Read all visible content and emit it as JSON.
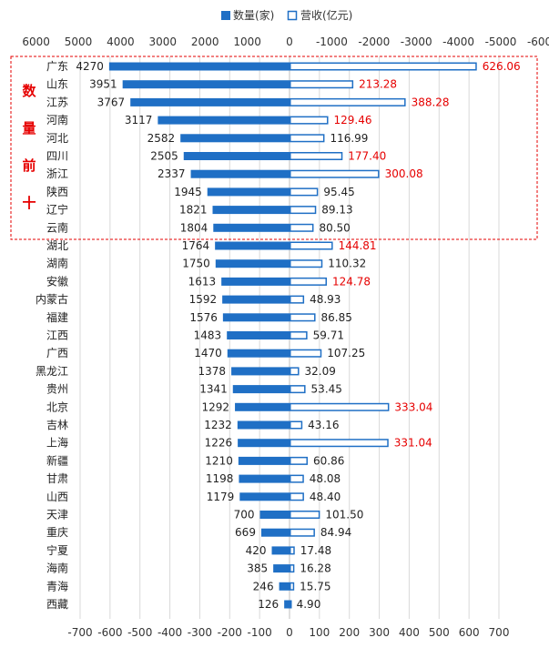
{
  "chart_data": {
    "type": "bar",
    "orientation": "horizontal-butterfly",
    "categories": [
      "广东",
      "山东",
      "江苏",
      "河南",
      "河北",
      "四川",
      "浙江",
      "陕西",
      "辽宁",
      "云南",
      "湖北",
      "湖南",
      "安徽",
      "内蒙古",
      "福建",
      "江西",
      "广西",
      "黑龙江",
      "贵州",
      "北京",
      "吉林",
      "上海",
      "新疆",
      "甘肃",
      "山西",
      "天津",
      "重庆",
      "宁夏",
      "海南",
      "青海",
      "西藏"
    ],
    "series": [
      {
        "name": "数量(家)",
        "values": [
          4270,
          3951,
          3767,
          3117,
          2582,
          2505,
          2337,
          1945,
          1821,
          1804,
          1764,
          1750,
          1613,
          1592,
          1576,
          1483,
          1470,
          1378,
          1341,
          1292,
          1232,
          1226,
          1210,
          1198,
          1179,
          700,
          669,
          420,
          385,
          246,
          126
        ],
        "color": "#1f6fc5"
      },
      {
        "name": "营收(亿元)",
        "values": [
          626.06,
          213.28,
          388.28,
          129.46,
          116.99,
          177.4,
          300.08,
          95.45,
          89.13,
          80.5,
          144.81,
          110.32,
          124.78,
          48.93,
          86.85,
          59.71,
          107.25,
          32.09,
          53.45,
          333.04,
          43.16,
          331.04,
          60.86,
          48.08,
          48.4,
          101.5,
          84.94,
          17.48,
          16.28,
          15.75,
          4.9
        ],
        "color": "#1f6fc5"
      }
    ],
    "value_labels": [
      "4270",
      "3951",
      "3767",
      "3117",
      "2582",
      "2505",
      "2337",
      "1945",
      "1821",
      "1804",
      "1764",
      "1750",
      "1613",
      "1592",
      "1576",
      "1483",
      "1470",
      "1378",
      "1341",
      "1292",
      "1232",
      "1226",
      "1210",
      "1198",
      "1179",
      "700",
      "669",
      "420",
      "385",
      "246",
      "126"
    ],
    "revenue_labels": [
      "626.06",
      "213.28",
      "388.28",
      "129.46",
      "116.99",
      "177.40",
      "300.08",
      "95.45",
      "89.13",
      "80.50",
      "144.81",
      "110.32",
      "124.78",
      "48.93",
      "86.85",
      "59.71",
      "107.25",
      "32.09",
      "53.45",
      "333.04",
      "43.16",
      "331.04",
      "60.86",
      "48.08",
      "48.40",
      "101.50",
      "84.94",
      "17.48",
      "16.28",
      "15.75",
      "4.90"
    ],
    "highlight_revenue": [
      true,
      true,
      true,
      true,
      false,
      true,
      true,
      false,
      false,
      false,
      true,
      false,
      true,
      false,
      false,
      false,
      false,
      false,
      false,
      true,
      false,
      true,
      false,
      false,
      false,
      false,
      false,
      false,
      false,
      false,
      false
    ],
    "highlight_color": "#e60000",
    "top_axis_ticks": [
      "6000",
      "5000",
      "4000",
      "3000",
      "2000",
      "1000",
      "0",
      "-1000",
      "-2000",
      "-3000",
      "-4000",
      "-5000",
      "-6000"
    ],
    "bottom_axis_ticks": [
      "-700",
      "-600",
      "-500",
      "-400",
      "-300",
      "-200",
      "-100",
      "0",
      "100",
      "200",
      "300",
      "400",
      "500",
      "600",
      "700"
    ],
    "count_axis_range": [
      -6000,
      6000
    ],
    "revenue_axis_range": [
      -700,
      700
    ],
    "grid": true,
    "legend_position": "top",
    "top_ten_label": [
      "数",
      "量",
      "前",
      "十"
    ],
    "top_ten_count": 10
  }
}
